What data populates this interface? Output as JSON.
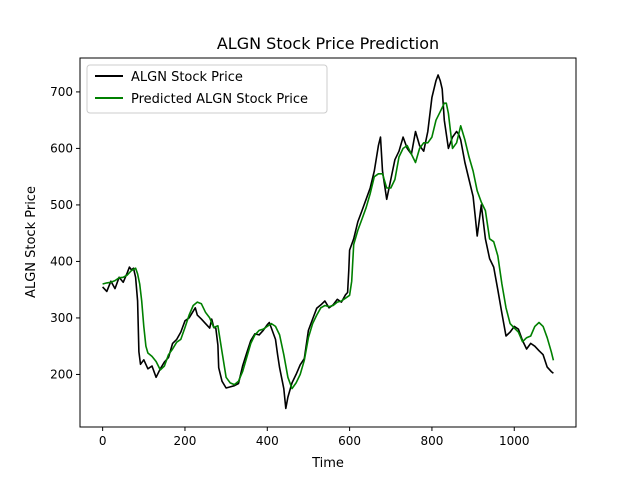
{
  "chart_data": {
    "type": "line",
    "title": "ALGN Stock Price Prediction",
    "xlabel": "Time",
    "ylabel": "ALGN Stock Price",
    "xlim": [
      -55,
      1150
    ],
    "ylim": [
      107,
      760
    ],
    "xticks": [
      0,
      200,
      400,
      600,
      800,
      1000
    ],
    "yticks": [
      200,
      300,
      400,
      500,
      600,
      700
    ],
    "grid": false,
    "legend_position": "upper-left",
    "series": [
      {
        "name": "ALGN Stock Price",
        "color": "#000000",
        "points": [
          [
            0,
            355
          ],
          [
            10,
            347
          ],
          [
            20,
            365
          ],
          [
            30,
            352
          ],
          [
            40,
            372
          ],
          [
            50,
            363
          ],
          [
            60,
            380
          ],
          [
            65,
            390
          ],
          [
            70,
            385
          ],
          [
            75,
            388
          ],
          [
            80,
            372
          ],
          [
            85,
            330
          ],
          [
            88,
            240
          ],
          [
            92,
            218
          ],
          [
            100,
            226
          ],
          [
            110,
            210
          ],
          [
            120,
            215
          ],
          [
            130,
            195
          ],
          [
            140,
            210
          ],
          [
            150,
            222
          ],
          [
            160,
            230
          ],
          [
            170,
            255
          ],
          [
            180,
            262
          ],
          [
            190,
            275
          ],
          [
            200,
            295
          ],
          [
            210,
            300
          ],
          [
            220,
            312
          ],
          [
            225,
            318
          ],
          [
            230,
            305
          ],
          [
            240,
            298
          ],
          [
            250,
            290
          ],
          [
            260,
            282
          ],
          [
            265,
            298
          ],
          [
            270,
            283
          ],
          [
            275,
            282
          ],
          [
            280,
            252
          ],
          [
            282,
            212
          ],
          [
            290,
            188
          ],
          [
            300,
            176
          ],
          [
            310,
            178
          ],
          [
            320,
            180
          ],
          [
            330,
            184
          ],
          [
            340,
            215
          ],
          [
            350,
            238
          ],
          [
            360,
            260
          ],
          [
            370,
            272
          ],
          [
            380,
            270
          ],
          [
            390,
            278
          ],
          [
            400,
            288
          ],
          [
            405,
            292
          ],
          [
            410,
            282
          ],
          [
            420,
            262
          ],
          [
            425,
            235
          ],
          [
            430,
            212
          ],
          [
            440,
            175
          ],
          [
            445,
            140
          ],
          [
            450,
            160
          ],
          [
            460,
            185
          ],
          [
            470,
            200
          ],
          [
            480,
            217
          ],
          [
            490,
            228
          ],
          [
            500,
            278
          ],
          [
            510,
            298
          ],
          [
            520,
            317
          ],
          [
            530,
            323
          ],
          [
            540,
            330
          ],
          [
            550,
            318
          ],
          [
            560,
            323
          ],
          [
            570,
            333
          ],
          [
            580,
            328
          ],
          [
            590,
            341
          ],
          [
            595,
            345
          ],
          [
            598,
            385
          ],
          [
            600,
            420
          ],
          [
            610,
            440
          ],
          [
            620,
            470
          ],
          [
            630,
            490
          ],
          [
            640,
            510
          ],
          [
            650,
            530
          ],
          [
            660,
            560
          ],
          [
            670,
            605
          ],
          [
            675,
            620
          ],
          [
            680,
            560
          ],
          [
            690,
            510
          ],
          [
            700,
            545
          ],
          [
            710,
            580
          ],
          [
            720,
            595
          ],
          [
            730,
            620
          ],
          [
            740,
            600
          ],
          [
            750,
            590
          ],
          [
            760,
            630
          ],
          [
            770,
            605
          ],
          [
            780,
            595
          ],
          [
            790,
            630
          ],
          [
            800,
            690
          ],
          [
            810,
            720
          ],
          [
            815,
            730
          ],
          [
            820,
            720
          ],
          [
            825,
            705
          ],
          [
            830,
            650
          ],
          [
            840,
            600
          ],
          [
            850,
            620
          ],
          [
            860,
            630
          ],
          [
            865,
            625
          ],
          [
            870,
            615
          ],
          [
            880,
            575
          ],
          [
            890,
            545
          ],
          [
            900,
            515
          ],
          [
            905,
            480
          ],
          [
            910,
            445
          ],
          [
            920,
            500
          ],
          [
            930,
            440
          ],
          [
            940,
            405
          ],
          [
            950,
            390
          ],
          [
            960,
            350
          ],
          [
            970,
            308
          ],
          [
            980,
            268
          ],
          [
            990,
            275
          ],
          [
            1000,
            285
          ],
          [
            1010,
            280
          ],
          [
            1020,
            260
          ],
          [
            1030,
            245
          ],
          [
            1040,
            255
          ],
          [
            1050,
            250
          ],
          [
            1060,
            242
          ],
          [
            1070,
            235
          ],
          [
            1080,
            213
          ],
          [
            1090,
            205
          ],
          [
            1095,
            202
          ]
        ]
      },
      {
        "name": "Predicted ALGN Stock Price",
        "color": "#008000",
        "points": [
          [
            0,
            360
          ],
          [
            10,
            362
          ],
          [
            20,
            363
          ],
          [
            30,
            366
          ],
          [
            40,
            371
          ],
          [
            50,
            372
          ],
          [
            60,
            376
          ],
          [
            70,
            384
          ],
          [
            80,
            388
          ],
          [
            85,
            378
          ],
          [
            90,
            360
          ],
          [
            95,
            330
          ],
          [
            100,
            285
          ],
          [
            105,
            250
          ],
          [
            110,
            238
          ],
          [
            120,
            232
          ],
          [
            130,
            223
          ],
          [
            140,
            208
          ],
          [
            150,
            215
          ],
          [
            160,
            235
          ],
          [
            170,
            245
          ],
          [
            180,
            257
          ],
          [
            190,
            262
          ],
          [
            200,
            283
          ],
          [
            210,
            305
          ],
          [
            220,
            322
          ],
          [
            230,
            328
          ],
          [
            240,
            325
          ],
          [
            250,
            310
          ],
          [
            260,
            300
          ],
          [
            270,
            283
          ],
          [
            280,
            286
          ],
          [
            290,
            240
          ],
          [
            300,
            195
          ],
          [
            310,
            185
          ],
          [
            320,
            182
          ],
          [
            330,
            188
          ],
          [
            340,
            205
          ],
          [
            350,
            230
          ],
          [
            360,
            255
          ],
          [
            370,
            270
          ],
          [
            380,
            278
          ],
          [
            390,
            280
          ],
          [
            400,
            285
          ],
          [
            410,
            290
          ],
          [
            420,
            285
          ],
          [
            430,
            270
          ],
          [
            440,
            235
          ],
          [
            450,
            195
          ],
          [
            460,
            175
          ],
          [
            470,
            185
          ],
          [
            480,
            200
          ],
          [
            490,
            225
          ],
          [
            500,
            265
          ],
          [
            510,
            290
          ],
          [
            520,
            305
          ],
          [
            530,
            318
          ],
          [
            540,
            322
          ],
          [
            550,
            320
          ],
          [
            560,
            322
          ],
          [
            570,
            328
          ],
          [
            580,
            330
          ],
          [
            590,
            335
          ],
          [
            600,
            340
          ],
          [
            605,
            365
          ],
          [
            610,
            430
          ],
          [
            620,
            455
          ],
          [
            630,
            475
          ],
          [
            640,
            495
          ],
          [
            650,
            520
          ],
          [
            660,
            550
          ],
          [
            670,
            555
          ],
          [
            680,
            555
          ],
          [
            690,
            530
          ],
          [
            700,
            530
          ],
          [
            710,
            545
          ],
          [
            720,
            585
          ],
          [
            730,
            600
          ],
          [
            740,
            605
          ],
          [
            750,
            590
          ],
          [
            760,
            575
          ],
          [
            770,
            600
          ],
          [
            780,
            610
          ],
          [
            790,
            610
          ],
          [
            800,
            620
          ],
          [
            810,
            650
          ],
          [
            820,
            665
          ],
          [
            830,
            680
          ],
          [
            835,
            680
          ],
          [
            840,
            662
          ],
          [
            850,
            600
          ],
          [
            860,
            610
          ],
          [
            870,
            640
          ],
          [
            880,
            615
          ],
          [
            890,
            585
          ],
          [
            900,
            560
          ],
          [
            910,
            525
          ],
          [
            920,
            505
          ],
          [
            930,
            490
          ],
          [
            940,
            440
          ],
          [
            950,
            435
          ],
          [
            960,
            410
          ],
          [
            970,
            360
          ],
          [
            980,
            318
          ],
          [
            990,
            290
          ],
          [
            1000,
            282
          ],
          [
            1010,
            275
          ],
          [
            1020,
            258
          ],
          [
            1030,
            265
          ],
          [
            1040,
            268
          ],
          [
            1050,
            285
          ],
          [
            1060,
            292
          ],
          [
            1070,
            285
          ],
          [
            1080,
            265
          ],
          [
            1090,
            240
          ],
          [
            1095,
            225
          ]
        ]
      }
    ]
  }
}
